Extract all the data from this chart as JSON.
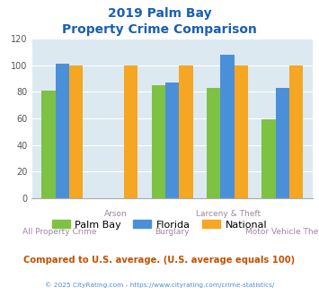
{
  "title_line1": "2019 Palm Bay",
  "title_line2": "Property Crime Comparison",
  "categories": [
    "All Property Crime",
    "Arson",
    "Burglary",
    "Larceny & Theft",
    "Motor Vehicle Theft"
  ],
  "series": {
    "Palm Bay": [
      81,
      0,
      85,
      83,
      59
    ],
    "Florida": [
      101,
      0,
      87,
      108,
      83
    ],
    "National": [
      100,
      100,
      100,
      100,
      100
    ]
  },
  "colors": {
    "Palm Bay": "#7dc242",
    "Florida": "#4a90d9",
    "National": "#f5a623"
  },
  "ylim": [
    0,
    120
  ],
  "yticks": [
    0,
    20,
    40,
    60,
    80,
    100,
    120
  ],
  "plot_bg_color": "#dce9f0",
  "title_color": "#1a5fb4",
  "xlabel_color": "#9e86a0",
  "footer_text": "Compared to U.S. average. (U.S. average equals 100)",
  "footer_color": "#c45000",
  "copyright_text": "© 2025 CityRating.com - https://www.cityrating.com/crime-statistics/",
  "copyright_color": "#4a90d9",
  "grid_color": "#ffffff",
  "bar_width": 0.25
}
